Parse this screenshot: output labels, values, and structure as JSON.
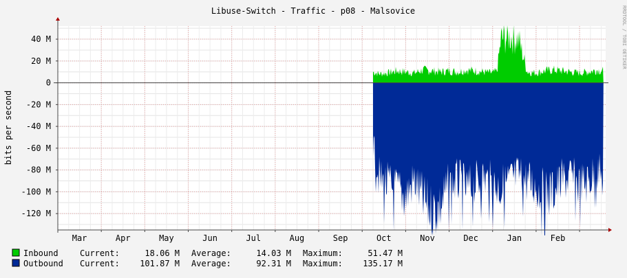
{
  "chart_data": {
    "type": "area",
    "title": "Libuse-Switch - Traffic - p08 - Malsovice",
    "ylabel": "bits per second",
    "watermark": "RRDTOOL / TOBI OETIKER",
    "ylim": [
      -135,
      52
    ],
    "y_ticks": [
      {
        "value": 40,
        "label": "40 M"
      },
      {
        "value": 20,
        "label": "20 M"
      },
      {
        "value": 0,
        "label": "0"
      },
      {
        "value": -20,
        "label": "-20 M"
      },
      {
        "value": -40,
        "label": "-40 M"
      },
      {
        "value": -60,
        "label": "-60 M"
      },
      {
        "value": -80,
        "label": "-80 M"
      },
      {
        "value": -100,
        "label": "-100 M"
      },
      {
        "value": -120,
        "label": "-120 M"
      }
    ],
    "months": [
      "Mar",
      "Apr",
      "May",
      "Jun",
      "Jul",
      "Aug",
      "Sep",
      "Oct",
      "Nov",
      "Dec",
      "Jan",
      "Feb"
    ],
    "x_range_months": [
      0,
      12.6
    ],
    "data_start_month": 7.25,
    "series": [
      {
        "name": "Inbound",
        "color": "#00cc00",
        "sign": 1,
        "x": [
          7.25,
          7.4,
          7.6,
          7.8,
          8.0,
          8.2,
          8.4,
          8.6,
          8.8,
          9.0,
          9.2,
          9.4,
          9.6,
          9.8,
          10.0,
          10.1,
          10.2,
          10.25,
          10.4,
          10.6,
          10.8,
          11.0,
          11.2,
          11.4,
          11.6,
          11.8,
          12.0,
          12.2,
          12.4,
          12.55
        ],
        "values": [
          11,
          9,
          10,
          12,
          11,
          10,
          13,
          12,
          11,
          12,
          11,
          13,
          12,
          11,
          10,
          12,
          46,
          45,
          47,
          44,
          11,
          10,
          12,
          13,
          12,
          11,
          10,
          11,
          13,
          12
        ]
      },
      {
        "name": "Outbound",
        "color": "#002a97",
        "sign": -1,
        "x": [
          7.25,
          7.4,
          7.6,
          7.8,
          8.0,
          8.2,
          8.4,
          8.6,
          8.8,
          9.0,
          9.2,
          9.4,
          9.6,
          9.8,
          10.0,
          10.2,
          10.4,
          10.6,
          10.8,
          11.0,
          11.2,
          11.4,
          11.6,
          11.8,
          12.0,
          12.2,
          12.4,
          12.55
        ],
        "values": [
          60,
          95,
          100,
          105,
          110,
          95,
          115,
          125,
          120,
          100,
          95,
          105,
          98,
          92,
          100,
          102,
          95,
          90,
          96,
          100,
          110,
          105,
          95,
          92,
          100,
          96,
          85,
          95
        ]
      }
    ],
    "legend": [
      {
        "name": "Inbound",
        "current": "18.06 M",
        "average": "14.03 M",
        "maximum": "51.47 M",
        "color": "#00cc00"
      },
      {
        "name": "Outbound",
        "current": "101.87 M",
        "average": "92.31 M",
        "maximum": "135.17 M",
        "color": "#002a97"
      }
    ],
    "legend_labels": {
      "current": "Current:",
      "average": "Average:",
      "maximum": "Maximum:"
    }
  }
}
